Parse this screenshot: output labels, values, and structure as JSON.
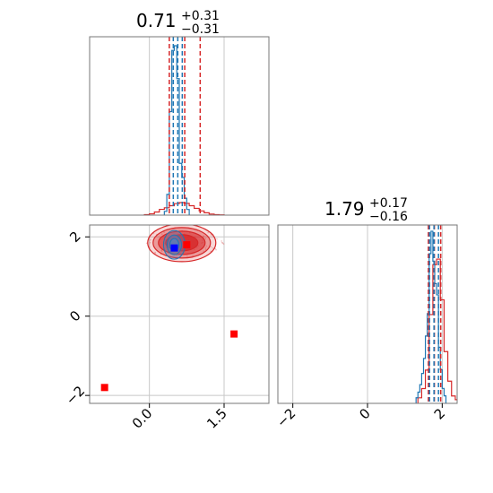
{
  "chart_data": {
    "type": "corner",
    "colors": {
      "primary": "#d62728",
      "secondary": "#1f77b4",
      "marker_blue": "#0000ff"
    },
    "grid": true,
    "panels": {
      "top_left": {
        "type": "histogram",
        "title": {
          "value": "0.71",
          "upper": "+0.31",
          "lower": "−0.31"
        },
        "xlim": [
          -1.2,
          2.4
        ],
        "quantiles_red": [
          0.4,
          0.71,
          1.02
        ],
        "quantiles_blue": [
          0.48,
          0.57,
          0.66
        ],
        "red_hist": {
          "edges": [
            -0.1,
            0.0,
            0.1,
            0.2,
            0.3,
            0.4,
            0.5,
            0.6,
            0.7,
            0.8,
            0.9,
            1.0,
            1.1,
            1.2,
            1.3,
            1.4,
            1.5
          ],
          "counts": [
            2,
            5,
            12,
            22,
            28,
            36,
            44,
            48,
            45,
            36,
            26,
            16,
            9,
            4,
            2,
            1
          ]
        },
        "blue_hist": {
          "edges": [
            0.3,
            0.35,
            0.4,
            0.45,
            0.5,
            0.55,
            0.6,
            0.65,
            0.7,
            0.75,
            0.8
          ],
          "counts": [
            4,
            22,
            110,
            175,
            180,
            145,
            55,
            40,
            18,
            6
          ]
        }
      },
      "bottom_left": {
        "type": "2d-density",
        "xlim": [
          -1.2,
          2.4
        ],
        "ylim": [
          -2.2,
          2.3
        ],
        "xticks": [
          0.0,
          1.5
        ],
        "xtick_labels": [
          "0.0",
          "1.5"
        ],
        "yticks": [
          -2,
          0,
          2
        ],
        "ytick_labels": [
          "−2",
          "0",
          "2"
        ],
        "red_center": [
          0.65,
          1.85
        ],
        "blue_center": [
          0.5,
          1.8
        ],
        "red_markers": [
          [
            0.75,
            1.8
          ],
          [
            1.7,
            -0.45
          ],
          [
            -0.9,
            -1.8
          ]
        ],
        "blue_markers": [
          [
            0.5,
            1.72
          ]
        ]
      },
      "bottom_right": {
        "type": "histogram",
        "title": {
          "value": "1.79",
          "upper": "+0.17",
          "lower": "−0.16"
        },
        "xlim": [
          -2.4,
          2.4
        ],
        "xticks": [
          -2,
          0,
          2
        ],
        "xtick_labels": [
          "−2",
          "0",
          "2"
        ],
        "quantiles_red": [
          1.63,
          1.79,
          1.96
        ],
        "quantiles_blue": [
          1.66,
          1.78,
          1.9
        ],
        "red_hist": {
          "edges": [
            1.35,
            1.45,
            1.55,
            1.65,
            1.75,
            1.85,
            1.95,
            2.05,
            2.15,
            2.25,
            2.35,
            2.45
          ],
          "counts": [
            3,
            8,
            18,
            48,
            75,
            78,
            56,
            28,
            12,
            4,
            2
          ]
        },
        "blue_hist": {
          "edges": [
            1.3,
            1.35,
            1.4,
            1.45,
            1.5,
            1.55,
            1.6,
            1.65,
            1.7,
            1.75,
            1.8,
            1.85,
            1.9,
            1.95,
            2.0,
            2.05,
            2.1
          ],
          "counts": [
            3,
            6,
            10,
            16,
            24,
            36,
            48,
            80,
            92,
            76,
            64,
            58,
            30,
            18,
            8,
            4
          ]
        }
      }
    }
  }
}
